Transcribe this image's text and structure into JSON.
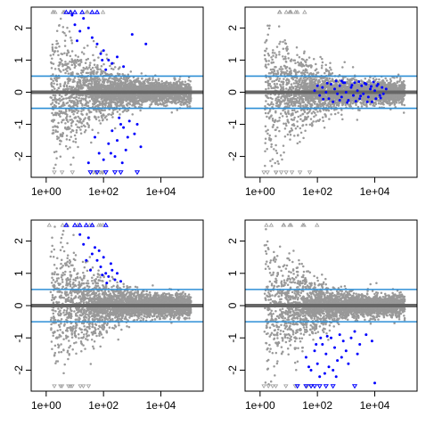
{
  "chart_data": [
    {
      "type": "scatter",
      "title": "",
      "xlabel": "",
      "ylabel": "",
      "log_x": true,
      "xlim": [
        0.3,
        300000
      ],
      "ylim": [
        -2.65,
        2.65
      ],
      "x_ticks": [
        {
          "value": 1,
          "label": "1e+00"
        },
        {
          "value": 100,
          "label": "1e+02"
        },
        {
          "value": 10000,
          "label": "1e+04"
        }
      ],
      "y_ticks": [
        {
          "value": -2,
          "label": "-2"
        },
        {
          "value": -1,
          "label": "-1"
        },
        {
          "value": 0,
          "label": "0"
        },
        {
          "value": 1,
          "label": "1"
        },
        {
          "value": 2,
          "label": "2"
        }
      ],
      "hlines": [
        {
          "y": 0,
          "color": "#666666"
        },
        {
          "y": 0.5,
          "color": "#2e8fd6"
        },
        {
          "y": -0.5,
          "color": "#2e8fd6"
        }
      ],
      "colors": {
        "background_points": "#999999",
        "highlight_points": "#0000ff"
      },
      "series": [
        {
          "values": [
            [
              8,
              2.4
            ],
            [
              10,
              2.1
            ],
            [
              15,
              1.9
            ],
            [
              20,
              2.3
            ],
            [
              12,
              1.6
            ],
            [
              30,
              2.0
            ],
            [
              40,
              1.7
            ],
            [
              60,
              1.5
            ],
            [
              80,
              1.2
            ],
            [
              100,
              1.3
            ],
            [
              150,
              1.0
            ],
            [
              200,
              0.9
            ],
            [
              300,
              1.1
            ],
            [
              500,
              0.8
            ],
            [
              1000,
              1.8
            ],
            [
              3000,
              1.5
            ],
            [
              120,
              0.7
            ],
            [
              90,
              1.0
            ],
            [
              50,
              -1.4
            ],
            [
              70,
              -1.9
            ],
            [
              100,
              -2.1
            ],
            [
              150,
              -1.6
            ],
            [
              200,
              -1.2
            ],
            [
              300,
              -1.5
            ],
            [
              400,
              -1.0
            ],
            [
              600,
              -1.8
            ],
            [
              800,
              -0.9
            ],
            [
              1200,
              -1.3
            ],
            [
              2000,
              -1.7
            ],
            [
              250,
              -2.0
            ],
            [
              500,
              -1.1
            ],
            [
              30,
              -2.2
            ],
            [
              350,
              -0.8
            ],
            [
              1500,
              -1.0
            ],
            [
              180,
              -1.9
            ],
            [
              450,
              -2.2
            ],
            [
              700,
              -1.4
            ]
          ]
        },
        {
          "values": [
            [
              5,
              2.5
            ],
            [
              7,
              2.5
            ],
            [
              10,
              2.5
            ],
            [
              18,
              2.5
            ],
            [
              40,
              2.5
            ],
            [
              60,
              2.5
            ],
            [
              35,
              -2.5
            ],
            [
              60,
              -2.5
            ],
            [
              120,
              -2.5
            ],
            [
              250,
              -2.5
            ],
            [
              400,
              -2.5
            ],
            [
              1500,
              -2.5
            ]
          ]
        }
      ]
    },
    {
      "type": "scatter",
      "title": "",
      "xlabel": "",
      "ylabel": "",
      "log_x": true,
      "xlim": [
        0.3,
        300000
      ],
      "ylim": [
        -2.65,
        2.65
      ],
      "x_ticks": [
        {
          "value": 1,
          "label": "1e+00"
        },
        {
          "value": 100,
          "label": "1e+02"
        },
        {
          "value": 10000,
          "label": "1e+04"
        }
      ],
      "y_ticks": [
        {
          "value": -2,
          "label": "-2"
        },
        {
          "value": -1,
          "label": "-1"
        },
        {
          "value": 0,
          "label": "0"
        },
        {
          "value": 1,
          "label": "1"
        },
        {
          "value": 2,
          "label": "2"
        }
      ],
      "hlines": [
        {
          "y": 0,
          "color": "#666666"
        },
        {
          "y": 0.5,
          "color": "#2e8fd6"
        },
        {
          "y": -0.5,
          "color": "#2e8fd6"
        }
      ],
      "colors": {
        "background_points": "#999999",
        "highlight_points": "#0000ff"
      },
      "series": [
        {
          "values": [
            [
              80,
              0.05
            ],
            [
              120,
              -0.1
            ],
            [
              150,
              0.15
            ],
            [
              200,
              0.0
            ],
            [
              250,
              -0.2
            ],
            [
              300,
              0.25
            ],
            [
              400,
              0.1
            ],
            [
              500,
              -0.05
            ],
            [
              600,
              0.2
            ],
            [
              700,
              -0.15
            ],
            [
              800,
              0.3
            ],
            [
              1000,
              0.0
            ],
            [
              1200,
              -0.25
            ],
            [
              1500,
              0.15
            ],
            [
              1800,
              -0.1
            ],
            [
              2000,
              0.3
            ],
            [
              2500,
              0.05
            ],
            [
              3000,
              -0.2
            ],
            [
              3500,
              0.2
            ],
            [
              4000,
              -0.05
            ],
            [
              5000,
              0.25
            ],
            [
              6000,
              -0.15
            ],
            [
              7000,
              0.1
            ],
            [
              8000,
              -0.3
            ],
            [
              10000,
              0.05
            ],
            [
              12000,
              0.2
            ],
            [
              15000,
              -0.1
            ],
            [
              18000,
              0.15
            ],
            [
              20000,
              -0.05
            ],
            [
              25000,
              0.1
            ],
            [
              350,
              -0.3
            ],
            [
              450,
              0.35
            ],
            [
              900,
              0.3
            ],
            [
              1100,
              -0.32
            ],
            [
              2200,
              -0.28
            ],
            [
              2800,
              0.33
            ],
            [
              4500,
              0.28
            ],
            [
              5500,
              -0.3
            ],
            [
              9000,
              0.32
            ],
            [
              11000,
              -0.2
            ],
            [
              13000,
              0.25
            ],
            [
              16000,
              -0.18
            ],
            [
              600,
              -0.25
            ],
            [
              1600,
              0.22
            ],
            [
              3200,
              -0.12
            ],
            [
              7500,
              0.18
            ],
            [
              100,
              0.2
            ],
            [
              160,
              -0.22
            ],
            [
              220,
              0.28
            ],
            [
              700,
              0.35
            ]
          ]
        },
        {
          "values": []
        }
      ]
    },
    {
      "type": "scatter",
      "title": "",
      "xlabel": "",
      "ylabel": "",
      "log_x": true,
      "xlim": [
        0.3,
        300000
      ],
      "ylim": [
        -2.65,
        2.65
      ],
      "x_ticks": [
        {
          "value": 1,
          "label": "1e+00"
        },
        {
          "value": 100,
          "label": "1e+02"
        },
        {
          "value": 10000,
          "label": "1e+04"
        }
      ],
      "y_ticks": [
        {
          "value": -2,
          "label": "-2"
        },
        {
          "value": -1,
          "label": "-1"
        },
        {
          "value": 0,
          "label": "0"
        },
        {
          "value": 1,
          "label": "1"
        },
        {
          "value": 2,
          "label": "2"
        }
      ],
      "hlines": [
        {
          "y": 0,
          "color": "#666666"
        },
        {
          "y": 0.5,
          "color": "#2e8fd6"
        },
        {
          "y": -0.5,
          "color": "#2e8fd6"
        }
      ],
      "colors": {
        "background_points": "#999999",
        "highlight_points": "#0000ff"
      },
      "series": [
        {
          "values": [
            [
              15,
              2.2
            ],
            [
              20,
              1.9
            ],
            [
              30,
              2.1
            ],
            [
              40,
              1.6
            ],
            [
              50,
              1.8
            ],
            [
              60,
              1.4
            ],
            [
              80,
              1.2
            ],
            [
              100,
              1.5
            ],
            [
              120,
              1.0
            ],
            [
              150,
              0.9
            ],
            [
              200,
              1.1
            ],
            [
              250,
              0.8
            ],
            [
              300,
              1.0
            ],
            [
              400,
              0.75
            ],
            [
              25,
              1.4
            ],
            [
              70,
              1.7
            ],
            [
              180,
              1.3
            ],
            [
              90,
              0.95
            ],
            [
              35,
              1.1
            ],
            [
              130,
              0.7
            ]
          ]
        },
        {
          "values": [
            [
              5,
              2.5
            ],
            [
              10,
              2.5
            ],
            [
              15,
              2.5
            ],
            [
              25,
              2.5
            ],
            [
              40,
              2.5
            ],
            [
              120,
              2.5
            ]
          ]
        }
      ]
    },
    {
      "type": "scatter",
      "title": "",
      "xlabel": "",
      "ylabel": "",
      "log_x": true,
      "xlim": [
        0.3,
        300000
      ],
      "ylim": [
        -2.65,
        2.65
      ],
      "x_ticks": [
        {
          "value": 1,
          "label": "1e+00"
        },
        {
          "value": 100,
          "label": "1e+02"
        },
        {
          "value": 10000,
          "label": "1e+04"
        }
      ],
      "y_ticks": [
        {
          "value": -2,
          "label": "-2"
        },
        {
          "value": -1,
          "label": "-1"
        },
        {
          "value": 0,
          "label": "0"
        },
        {
          "value": 1,
          "label": "1"
        },
        {
          "value": 2,
          "label": "2"
        }
      ],
      "hlines": [
        {
          "y": 0,
          "color": "#666666"
        },
        {
          "y": 0.5,
          "color": "#2e8fd6"
        },
        {
          "y": -0.5,
          "color": "#2e8fd6"
        }
      ],
      "colors": {
        "background_points": "#999999",
        "highlight_points": "#0000ff"
      },
      "series": [
        {
          "values": [
            [
              40,
              -1.6
            ],
            [
              60,
              -2.0
            ],
            [
              80,
              -1.4
            ],
            [
              100,
              -1.8
            ],
            [
              120,
              -2.2
            ],
            [
              150,
              -1.2
            ],
            [
              200,
              -1.5
            ],
            [
              250,
              -1.9
            ],
            [
              300,
              -1.0
            ],
            [
              400,
              -1.3
            ],
            [
              500,
              -1.7
            ],
            [
              600,
              -0.9
            ],
            [
              800,
              -1.1
            ],
            [
              1000,
              -1.4
            ],
            [
              1500,
              -1.0
            ],
            [
              2000,
              -0.8
            ],
            [
              3000,
              -1.2
            ],
            [
              5000,
              -0.9
            ],
            [
              8000,
              -1.1
            ],
            [
              180,
              -2.1
            ],
            [
              350,
              -2.0
            ],
            [
              700,
              -1.6
            ],
            [
              130,
              -1.0
            ],
            [
              90,
              -1.2
            ],
            [
              450,
              -2.2
            ],
            [
              50,
              -1.9
            ],
            [
              2500,
              -1.5
            ],
            [
              10000,
              -2.4
            ],
            [
              1200,
              -1.8
            ],
            [
              220,
              -0.95
            ]
          ]
        },
        {
          "values": [
            [
              20,
              -2.5
            ],
            [
              40,
              -2.5
            ],
            [
              60,
              -2.5
            ],
            [
              80,
              -2.5
            ],
            [
              120,
              -2.5
            ],
            [
              200,
              -2.5
            ],
            [
              350,
              -2.5
            ],
            [
              2000,
              -2.5
            ]
          ]
        }
      ]
    }
  ]
}
